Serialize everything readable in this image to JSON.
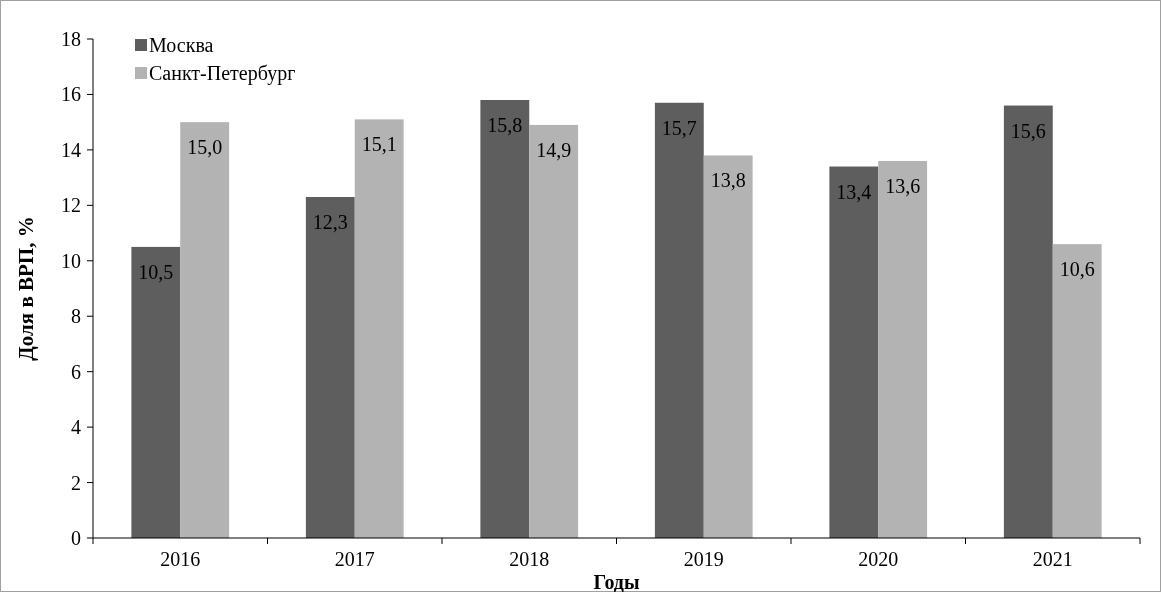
{
  "chart_data": {
    "type": "bar",
    "xlabel": "Годы",
    "ylabel": "Доля в ВРП, %",
    "categories": [
      "2016",
      "2017",
      "2018",
      "2019",
      "2020",
      "2021"
    ],
    "series": [
      {
        "name": "Москва",
        "color": "#5e5e5e",
        "values": [
          10.5,
          12.3,
          15.8,
          15.7,
          13.4,
          15.6
        ],
        "value_labels": [
          "10,5",
          "12,3",
          "15,8",
          "15,7",
          "13,4",
          "15,6"
        ]
      },
      {
        "name": "Санкт-Петербург",
        "color": "#b3b3b3",
        "values": [
          15.0,
          15.1,
          14.9,
          13.8,
          13.6,
          10.6
        ],
        "value_labels": [
          "15,0",
          "15,1",
          "14,9",
          "13,8",
          "13,6",
          "10,6"
        ]
      }
    ],
    "ylim": [
      0,
      18
    ],
    "yticks": [
      0,
      2,
      4,
      6,
      8,
      10,
      12,
      14,
      16,
      18
    ],
    "grid": false,
    "legend": "top left"
  }
}
